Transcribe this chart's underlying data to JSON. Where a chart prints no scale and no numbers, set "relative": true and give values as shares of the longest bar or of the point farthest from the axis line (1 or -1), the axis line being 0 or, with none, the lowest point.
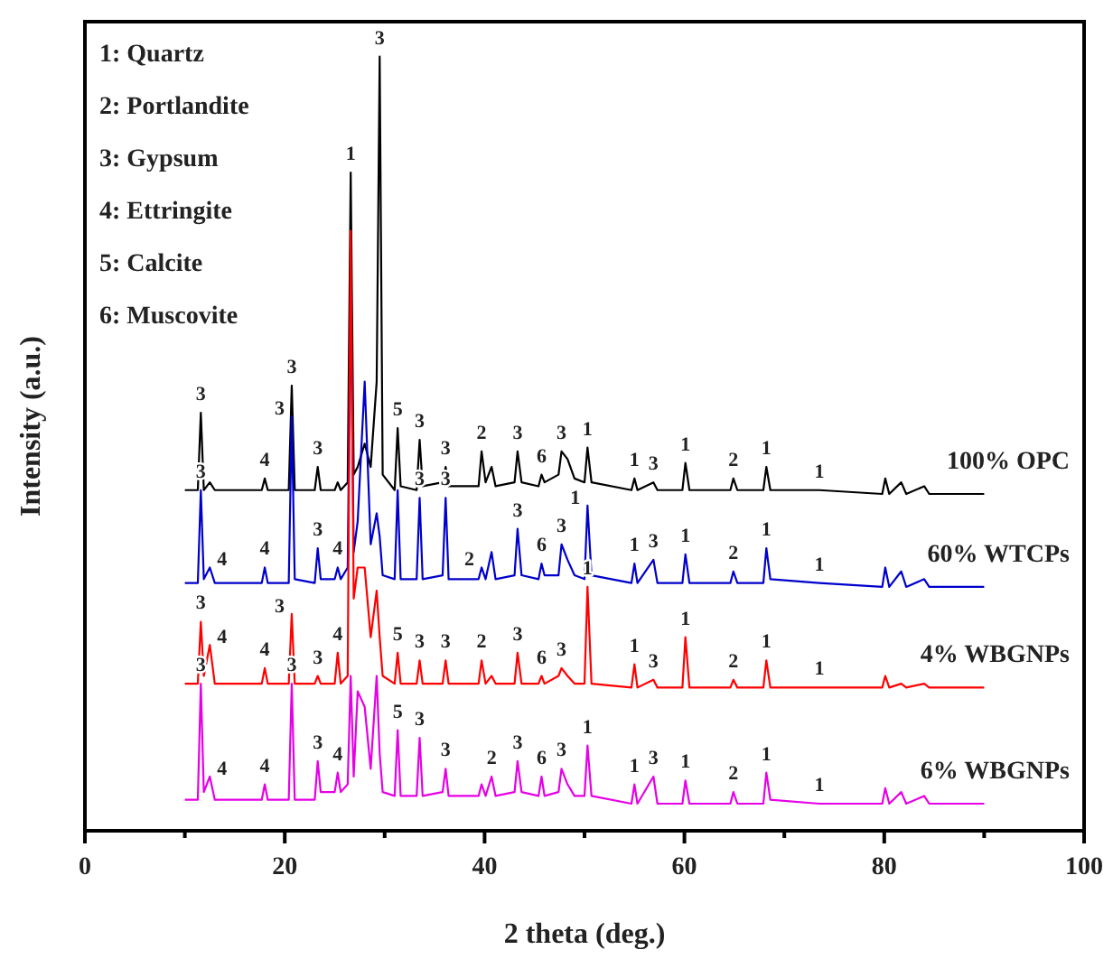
{
  "chart_data": {
    "type": "line",
    "relative": true,
    "xlabel": "2 theta (deg.)",
    "ylabel": "Intensity (a.u.)",
    "tick_labels": "x",
    "xlim": [
      0,
      100
    ],
    "xticks": [
      0,
      {
        "value": 10,
        "label": null
      },
      20,
      {
        "value": 30,
        "label": null
      },
      40,
      {
        "value": 50,
        "label": null
      },
      60,
      {
        "value": 70,
        "label": null
      },
      80,
      {
        "value": 90,
        "label": null
      },
      100
    ],
    "x": [
      10,
      11.3,
      11.6,
      11.9,
      12.5,
      13,
      17.7,
      18.0,
      18.3,
      20.4,
      20.7,
      21.0,
      23.0,
      23.3,
      23.6,
      25.0,
      25.3,
      25.6,
      26.3,
      26.6,
      26.9,
      27.3,
      28.0,
      28.6,
      29.2,
      29.5,
      29.8,
      31.0,
      31.3,
      31.6,
      33.2,
      33.5,
      33.8,
      35.8,
      36.1,
      36.4,
      39.4,
      39.7,
      40.1,
      40.7,
      41.1,
      43.0,
      43.3,
      43.7,
      45.4,
      45.7,
      46.0,
      47.4,
      47.7,
      48.3,
      49.0,
      50.0,
      50.3,
      50.7,
      54.7,
      55.0,
      55.3,
      56.9,
      57.3,
      59.8,
      60.1,
      60.5,
      64.6,
      64.9,
      65.3,
      67.9,
      68.2,
      68.6,
      73.5,
      79.8,
      80.1,
      80.5,
      81.7,
      82.2,
      84.0,
      84.5,
      90
    ],
    "series": [
      {
        "name": "100% OPC",
        "color": "#000000",
        "values": [
          0.44,
          0.44,
          0.54,
          0.44,
          0.45,
          0.44,
          0.44,
          0.455,
          0.44,
          0.44,
          0.575,
          0.44,
          0.44,
          0.47,
          0.44,
          0.44,
          0.45,
          0.44,
          0.45,
          0.85,
          0.46,
          0.47,
          0.5,
          0.47,
          0.58,
          1.0,
          0.46,
          0.44,
          0.52,
          0.445,
          0.44,
          0.505,
          0.445,
          0.45,
          0.47,
          0.445,
          0.445,
          0.49,
          0.45,
          0.47,
          0.445,
          0.45,
          0.49,
          0.45,
          0.445,
          0.46,
          0.45,
          0.46,
          0.49,
          0.48,
          0.455,
          0.45,
          0.495,
          0.45,
          0.44,
          0.455,
          0.44,
          0.45,
          0.44,
          0.44,
          0.475,
          0.44,
          0.44,
          0.455,
          0.44,
          0.44,
          0.47,
          0.44,
          0.44,
          0.435,
          0.455,
          0.435,
          0.45,
          0.435,
          0.445,
          0.435,
          0.435
        ]
      },
      {
        "name": "60% WTCPs",
        "color": "#0000cc",
        "values": [
          0.32,
          0.32,
          0.44,
          0.325,
          0.34,
          0.32,
          0.32,
          0.34,
          0.32,
          0.32,
          0.535,
          0.325,
          0.32,
          0.365,
          0.325,
          0.325,
          0.34,
          0.325,
          0.34,
          0.705,
          0.36,
          0.4,
          0.58,
          0.37,
          0.41,
          0.38,
          0.33,
          0.325,
          0.44,
          0.325,
          0.325,
          0.43,
          0.325,
          0.33,
          0.43,
          0.325,
          0.325,
          0.34,
          0.325,
          0.36,
          0.325,
          0.33,
          0.39,
          0.33,
          0.325,
          0.345,
          0.33,
          0.33,
          0.37,
          0.35,
          0.33,
          0.325,
          0.42,
          0.33,
          0.32,
          0.345,
          0.32,
          0.35,
          0.32,
          0.32,
          0.357,
          0.32,
          0.32,
          0.335,
          0.32,
          0.32,
          0.365,
          0.325,
          0.32,
          0.315,
          0.34,
          0.315,
          0.335,
          0.315,
          0.325,
          0.315,
          0.315
        ]
      },
      {
        "name": "4% WBGNPs",
        "color": "#ff0000",
        "values": [
          0.19,
          0.19,
          0.27,
          0.2,
          0.24,
          0.19,
          0.19,
          0.21,
          0.19,
          0.19,
          0.28,
          0.19,
          0.19,
          0.2,
          0.19,
          0.19,
          0.23,
          0.19,
          0.2,
          0.775,
          0.3,
          0.34,
          0.34,
          0.25,
          0.31,
          0.25,
          0.2,
          0.19,
          0.23,
          0.19,
          0.19,
          0.22,
          0.19,
          0.19,
          0.22,
          0.19,
          0.19,
          0.22,
          0.19,
          0.2,
          0.19,
          0.19,
          0.23,
          0.19,
          0.19,
          0.2,
          0.19,
          0.2,
          0.21,
          0.2,
          0.19,
          0.19,
          0.315,
          0.19,
          0.185,
          0.215,
          0.185,
          0.195,
          0.185,
          0.185,
          0.25,
          0.185,
          0.185,
          0.195,
          0.185,
          0.185,
          0.22,
          0.185,
          0.185,
          0.185,
          0.2,
          0.185,
          0.19,
          0.185,
          0.19,
          0.185,
          0.185
        ]
      },
      {
        "name": "6% WBGNPs",
        "color": "#e600e6",
        "values": [
          0.04,
          0.04,
          0.19,
          0.05,
          0.07,
          0.04,
          0.04,
          0.06,
          0.04,
          0.04,
          0.19,
          0.04,
          0.04,
          0.09,
          0.05,
          0.05,
          0.075,
          0.05,
          0.06,
          0.2,
          0.07,
          0.18,
          0.16,
          0.08,
          0.2,
          0.1,
          0.05,
          0.045,
          0.13,
          0.045,
          0.045,
          0.12,
          0.045,
          0.05,
          0.08,
          0.045,
          0.045,
          0.06,
          0.045,
          0.07,
          0.045,
          0.05,
          0.09,
          0.05,
          0.045,
          0.07,
          0.045,
          0.05,
          0.08,
          0.06,
          0.045,
          0.045,
          0.11,
          0.045,
          0.035,
          0.06,
          0.035,
          0.07,
          0.035,
          0.035,
          0.065,
          0.035,
          0.035,
          0.05,
          0.035,
          0.035,
          0.075,
          0.04,
          0.035,
          0.035,
          0.055,
          0.035,
          0.05,
          0.035,
          0.045,
          0.035,
          0.035
        ]
      }
    ],
    "annotations": [
      "1: Quartz",
      "2: Portlandite",
      "3: Gypsum",
      "4: Ettringite",
      "5: Calcite",
      "6: Muscovite",
      {
        "text": "3",
        "x": 11.6,
        "y": 0.54
      },
      {
        "text": "4",
        "x": 18.0,
        "y": 0.455
      },
      {
        "text": "3",
        "x": 20.7,
        "y": 0.575
      },
      {
        "text": "3",
        "x": 23.3,
        "y": 0.47
      },
      {
        "text": "1",
        "x": 26.6,
        "y": 0.85
      },
      {
        "text": "3",
        "x": 29.5,
        "y": 1.0
      },
      {
        "text": "5",
        "x": 31.3,
        "y": 0.52
      },
      {
        "text": "3",
        "x": 33.5,
        "y": 0.505
      },
      {
        "text": "3",
        "x": 36.1,
        "y": 0.47
      },
      {
        "text": "2",
        "x": 39.7,
        "y": 0.49
      },
      {
        "text": "3",
        "x": 43.3,
        "y": 0.49
      },
      {
        "text": "6",
        "x": 45.7,
        "y": 0.46
      },
      {
        "text": "3",
        "x": 47.7,
        "y": 0.49
      },
      {
        "text": "1",
        "x": 50.3,
        "y": 0.495
      },
      {
        "text": "1",
        "x": 55.0,
        "y": 0.455
      },
      {
        "text": "3",
        "x": 56.9,
        "y": 0.45
      },
      {
        "text": "1",
        "x": 60.1,
        "y": 0.475
      },
      {
        "text": "2",
        "x": 64.9,
        "y": 0.455
      },
      {
        "text": "1",
        "x": 68.2,
        "y": 0.47
      },
      {
        "text": "1",
        "x": 73.5,
        "y": 0.44
      },
      {
        "text": "3",
        "x": 11.6,
        "y": 0.44
      },
      {
        "text": "4",
        "x": 12.5,
        "y": 0.34
      },
      {
        "text": "4",
        "x": 18.0,
        "y": 0.34
      },
      {
        "text": "3",
        "x": 20.7,
        "y": 0.535
      },
      {
        "text": "3",
        "x": 23.3,
        "y": 0.365
      },
      {
        "text": "4",
        "x": 25.3,
        "y": 0.34
      },
      {
        "text": "3",
        "x": 33.5,
        "y": 0.43
      },
      {
        "text": "3",
        "x": 36.1,
        "y": 0.43
      },
      {
        "text": "2",
        "x": 39.7,
        "y": 0.34
      },
      {
        "text": "3",
        "x": 43.3,
        "y": 0.39
      },
      {
        "text": "6",
        "x": 45.7,
        "y": 0.345
      },
      {
        "text": "3",
        "x": 47.7,
        "y": 0.37
      },
      {
        "text": "1",
        "x": 50.3,
        "y": 0.42
      },
      {
        "text": "1",
        "x": 55.0,
        "y": 0.345
      },
      {
        "text": "3",
        "x": 56.9,
        "y": 0.35
      },
      {
        "text": "1",
        "x": 60.1,
        "y": 0.357
      },
      {
        "text": "2",
        "x": 64.9,
        "y": 0.335
      },
      {
        "text": "1",
        "x": 68.2,
        "y": 0.365
      },
      {
        "text": "1",
        "x": 73.5,
        "y": 0.32
      },
      {
        "text": "3",
        "x": 11.6,
        "y": 0.27
      },
      {
        "text": "4",
        "x": 12.5,
        "y": 0.24
      },
      {
        "text": "4",
        "x": 18.0,
        "y": 0.21
      },
      {
        "text": "3",
        "x": 20.7,
        "y": 0.28
      },
      {
        "text": "3",
        "x": 23.3,
        "y": 0.2
      },
      {
        "text": "4",
        "x": 25.3,
        "y": 0.23
      },
      {
        "text": "5",
        "x": 31.3,
        "y": 0.23
      },
      {
        "text": "3",
        "x": 33.5,
        "y": 0.22
      },
      {
        "text": "3",
        "x": 36.1,
        "y": 0.22
      },
      {
        "text": "2",
        "x": 39.7,
        "y": 0.22
      },
      {
        "text": "3",
        "x": 43.3,
        "y": 0.23
      },
      {
        "text": "6",
        "x": 45.7,
        "y": 0.2
      },
      {
        "text": "3",
        "x": 47.7,
        "y": 0.21
      },
      {
        "text": "1",
        "x": 50.3,
        "y": 0.315
      },
      {
        "text": "1",
        "x": 55.0,
        "y": 0.215
      },
      {
        "text": "3",
        "x": 56.9,
        "y": 0.195
      },
      {
        "text": "1",
        "x": 60.1,
        "y": 0.25
      },
      {
        "text": "2",
        "x": 64.9,
        "y": 0.195
      },
      {
        "text": "1",
        "x": 68.2,
        "y": 0.22
      },
      {
        "text": "1",
        "x": 73.5,
        "y": 0.185
      },
      {
        "text": "3",
        "x": 11.6,
        "y": 0.19
      },
      {
        "text": "4",
        "x": 12.5,
        "y": 0.07
      },
      {
        "text": "4",
        "x": 18.0,
        "y": 0.06
      },
      {
        "text": "3",
        "x": 20.7,
        "y": 0.19
      },
      {
        "text": "3",
        "x": 23.3,
        "y": 0.09
      },
      {
        "text": "4",
        "x": 25.3,
        "y": 0.075
      },
      {
        "text": "5",
        "x": 31.3,
        "y": 0.13
      },
      {
        "text": "3",
        "x": 33.5,
        "y": 0.12
      },
      {
        "text": "3",
        "x": 36.1,
        "y": 0.08
      },
      {
        "text": "2",
        "x": 40.7,
        "y": 0.07
      },
      {
        "text": "3",
        "x": 43.3,
        "y": 0.09
      },
      {
        "text": "6",
        "x": 45.7,
        "y": 0.07
      },
      {
        "text": "3",
        "x": 47.7,
        "y": 0.08
      },
      {
        "text": "1",
        "x": 50.3,
        "y": 0.11
      },
      {
        "text": "1",
        "x": 55.0,
        "y": 0.06
      },
      {
        "text": "3",
        "x": 56.9,
        "y": 0.07
      },
      {
        "text": "1",
        "x": 60.1,
        "y": 0.065
      },
      {
        "text": "2",
        "x": 64.9,
        "y": 0.05
      },
      {
        "text": "1",
        "x": 68.2,
        "y": 0.075
      },
      {
        "text": "1",
        "x": 73.5,
        "y": 0.035
      }
    ]
  }
}
